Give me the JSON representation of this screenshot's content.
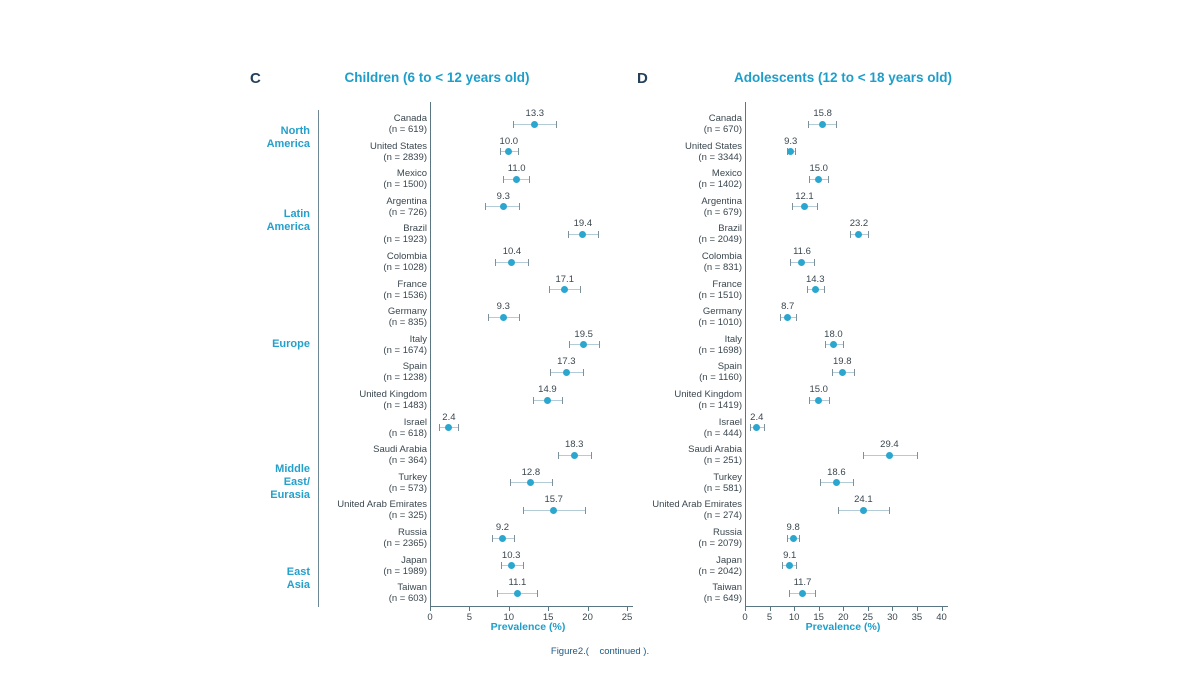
{
  "chart_data": {
    "type": "scatter",
    "subtype": "forest-plot",
    "description": "Prevalence (%) with confidence intervals by country, grouped by region; two age-group panels",
    "caption": "Figure2.(    continued ).",
    "colors": {
      "accent": "#1f9ec9",
      "point": "#2aa6cf",
      "panel_letter": "#24405a",
      "text": "#3a474f",
      "axis": "#5a7682",
      "whisker": "#b3cbd6",
      "cap": "#7d919c",
      "caption": "#1d5a85"
    },
    "regions": [
      {
        "lines": [
          "North",
          "America"
        ],
        "start": 0,
        "end": 1
      },
      {
        "lines": [
          "Latin",
          "America"
        ],
        "start": 2,
        "end": 5
      },
      {
        "lines": [
          "Europe"
        ],
        "start": 6,
        "end": 10
      },
      {
        "lines": [
          "Middle",
          "East/",
          "Eurasia"
        ],
        "start": 11,
        "end": 15
      },
      {
        "lines": [
          "East",
          "Asia"
        ],
        "start": 16,
        "end": 17
      }
    ],
    "panels": [
      {
        "letter": "C",
        "title": "Children (6 to < 12 years old)",
        "xlabel": "Prevalence (%)",
        "xlim": [
          0,
          25
        ],
        "ticks": [
          0,
          5,
          10,
          15,
          20,
          25
        ],
        "rows": [
          {
            "country": "Canada",
            "n": "(n = 619)",
            "value": "13.3",
            "lo": 10.5,
            "hi": 16.0
          },
          {
            "country": "United States",
            "n": "(n = 2839)",
            "value": "10.0",
            "lo": 8.9,
            "hi": 11.2
          },
          {
            "country": "Mexico",
            "n": "(n = 1500)",
            "value": "11.0",
            "lo": 9.3,
            "hi": 12.6
          },
          {
            "country": "Argentina",
            "n": "(n = 726)",
            "value": "9.3",
            "lo": 7.0,
            "hi": 11.3
          },
          {
            "country": "Brazil",
            "n": "(n = 1923)",
            "value": "19.4",
            "lo": 17.5,
            "hi": 21.3
          },
          {
            "country": "Colombia",
            "n": "(n = 1028)",
            "value": "10.4",
            "lo": 8.3,
            "hi": 12.4
          },
          {
            "country": "France",
            "n": "(n = 1536)",
            "value": "17.1",
            "lo": 15.1,
            "hi": 19.0
          },
          {
            "country": "Germany",
            "n": "(n = 835)",
            "value": "9.3",
            "lo": 7.3,
            "hi": 11.3
          },
          {
            "country": "Italy",
            "n": "(n = 1674)",
            "value": "19.5",
            "lo": 17.6,
            "hi": 21.5
          },
          {
            "country": "Spain",
            "n": "(n = 1238)",
            "value": "17.3",
            "lo": 15.2,
            "hi": 19.4
          },
          {
            "country": "United Kingdom",
            "n": "(n = 1483)",
            "value": "14.9",
            "lo": 13.1,
            "hi": 16.8
          },
          {
            "country": "Israel",
            "n": "(n = 618)",
            "value": "2.4",
            "lo": 1.2,
            "hi": 3.6
          },
          {
            "country": "Saudi Arabia",
            "n": "(n = 364)",
            "value": "18.3",
            "lo": 16.2,
            "hi": 20.4
          },
          {
            "country": "Turkey",
            "n": "(n = 573)",
            "value": "12.8",
            "lo": 10.1,
            "hi": 15.5
          },
          {
            "country": "United Arab Emirates",
            "n": "(n = 325)",
            "value": "15.7",
            "lo": 11.8,
            "hi": 19.7
          },
          {
            "country": "Russia",
            "n": "(n = 2365)",
            "value": "9.2",
            "lo": 7.9,
            "hi": 10.6
          },
          {
            "country": "Japan",
            "n": "(n = 1989)",
            "value": "10.3",
            "lo": 9.0,
            "hi": 11.8
          },
          {
            "country": "Taiwan",
            "n": "(n = 603)",
            "value": "11.1",
            "lo": 8.5,
            "hi": 13.6
          }
        ]
      },
      {
        "letter": "D",
        "title": "Adolescents (12 to < 18 years old)",
        "xlabel": "Prevalence (%)",
        "xlim": [
          0,
          40
        ],
        "ticks": [
          0,
          5,
          10,
          15,
          20,
          25,
          30,
          35,
          40
        ],
        "rows": [
          {
            "country": "Canada",
            "n": "(n = 670)",
            "value": "15.8",
            "lo": 12.9,
            "hi": 18.5
          },
          {
            "country": "United States",
            "n": "(n = 3344)",
            "value": "9.3",
            "lo": 8.5,
            "hi": 10.2
          },
          {
            "country": "Mexico",
            "n": "(n = 1402)",
            "value": "15.0",
            "lo": 13.1,
            "hi": 16.9
          },
          {
            "country": "Argentina",
            "n": "(n = 679)",
            "value": "12.1",
            "lo": 9.6,
            "hi": 14.6
          },
          {
            "country": "Brazil",
            "n": "(n = 2049)",
            "value": "23.2",
            "lo": 21.4,
            "hi": 25.0
          },
          {
            "country": "Colombia",
            "n": "(n = 831)",
            "value": "11.6",
            "lo": 9.1,
            "hi": 14.1
          },
          {
            "country": "France",
            "n": "(n = 1510)",
            "value": "14.3",
            "lo": 12.6,
            "hi": 16.0
          },
          {
            "country": "Germany",
            "n": "(n = 1010)",
            "value": "8.7",
            "lo": 7.2,
            "hi": 10.3
          },
          {
            "country": "Italy",
            "n": "(n = 1698)",
            "value": "18.0",
            "lo": 16.2,
            "hi": 19.9
          },
          {
            "country": "Spain",
            "n": "(n = 1160)",
            "value": "19.8",
            "lo": 17.8,
            "hi": 22.1
          },
          {
            "country": "United Kingdom",
            "n": "(n = 1419)",
            "value": "15.0",
            "lo": 13.0,
            "hi": 17.1
          },
          {
            "country": "Israel",
            "n": "(n = 444)",
            "value": "2.4",
            "lo": 1.0,
            "hi": 3.8
          },
          {
            "country": "Saudi Arabia",
            "n": "(n = 251)",
            "value": "29.4",
            "lo": 24.0,
            "hi": 35.0
          },
          {
            "country": "Turkey",
            "n": "(n = 581)",
            "value": "18.6",
            "lo": 15.3,
            "hi": 21.9
          },
          {
            "country": "United Arab Emirates",
            "n": "(n = 274)",
            "value": "24.1",
            "lo": 18.9,
            "hi": 29.3
          },
          {
            "country": "Russia",
            "n": "(n = 2079)",
            "value": "9.8",
            "lo": 8.5,
            "hi": 11.0
          },
          {
            "country": "Japan",
            "n": "(n = 2042)",
            "value": "9.1",
            "lo": 7.6,
            "hi": 10.4
          },
          {
            "country": "Taiwan",
            "n": "(n = 649)",
            "value": "11.7",
            "lo": 9.0,
            "hi": 14.3
          }
        ]
      }
    ]
  }
}
